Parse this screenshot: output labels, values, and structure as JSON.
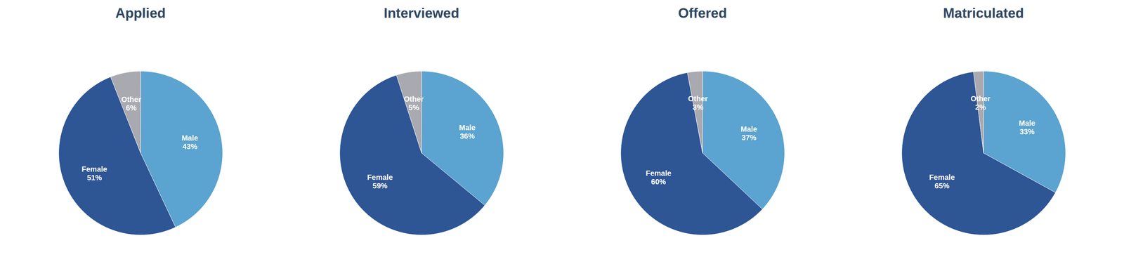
{
  "chart_data": [
    {
      "type": "pie",
      "title": "Applied",
      "categories": [
        "Male",
        "Female",
        "Other"
      ],
      "values": [
        43,
        51,
        6
      ],
      "value_labels": [
        "43%",
        "51%",
        "6%"
      ],
      "colors": [
        "#5BA3D0",
        "#2E5594",
        "#A9A9B0"
      ],
      "data_labels": true
    },
    {
      "type": "pie",
      "title": "Interviewed",
      "categories": [
        "Male",
        "Female",
        "Other"
      ],
      "values": [
        36,
        59,
        5
      ],
      "value_labels": [
        "36%",
        "59%",
        "5%"
      ],
      "colors": [
        "#5BA3D0",
        "#2E5594",
        "#A9A9B0"
      ],
      "data_labels": true
    },
    {
      "type": "pie",
      "title": "Offered",
      "categories": [
        "Male",
        "Female",
        "Other"
      ],
      "values": [
        37,
        60,
        3
      ],
      "value_labels": [
        "37%",
        "60%",
        "3%"
      ],
      "colors": [
        "#5BA3D0",
        "#2E5594",
        "#A9A9B0"
      ],
      "data_labels": true
    },
    {
      "type": "pie",
      "title": "Matriculated",
      "categories": [
        "Male",
        "Female",
        "Other"
      ],
      "values": [
        33,
        65,
        2
      ],
      "value_labels": [
        "33%",
        "65%",
        "2%"
      ],
      "colors": [
        "#5BA3D0",
        "#2E5594",
        "#A9A9B0"
      ],
      "data_labels": true
    }
  ]
}
